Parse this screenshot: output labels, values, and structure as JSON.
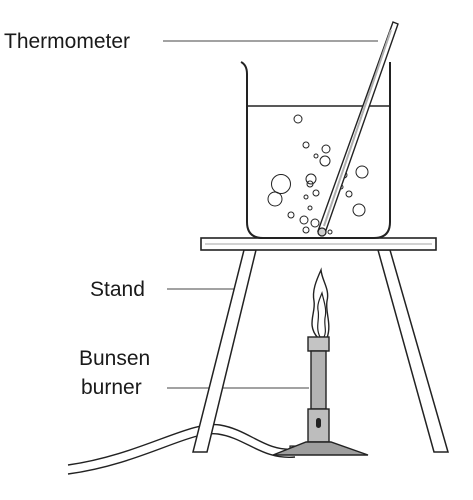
{
  "labels": {
    "thermometer": "Thermometer",
    "stand": "Stand",
    "bunsen_line1": "Bunsen",
    "bunsen_line2": "burner"
  },
  "colors": {
    "line": "#222222",
    "liquid_bubble": "#222222",
    "burner_body": "#b3b3b3",
    "burner_base": "#999999",
    "thermometer_fill": "#c8c8c8",
    "background": "#ffffff"
  }
}
